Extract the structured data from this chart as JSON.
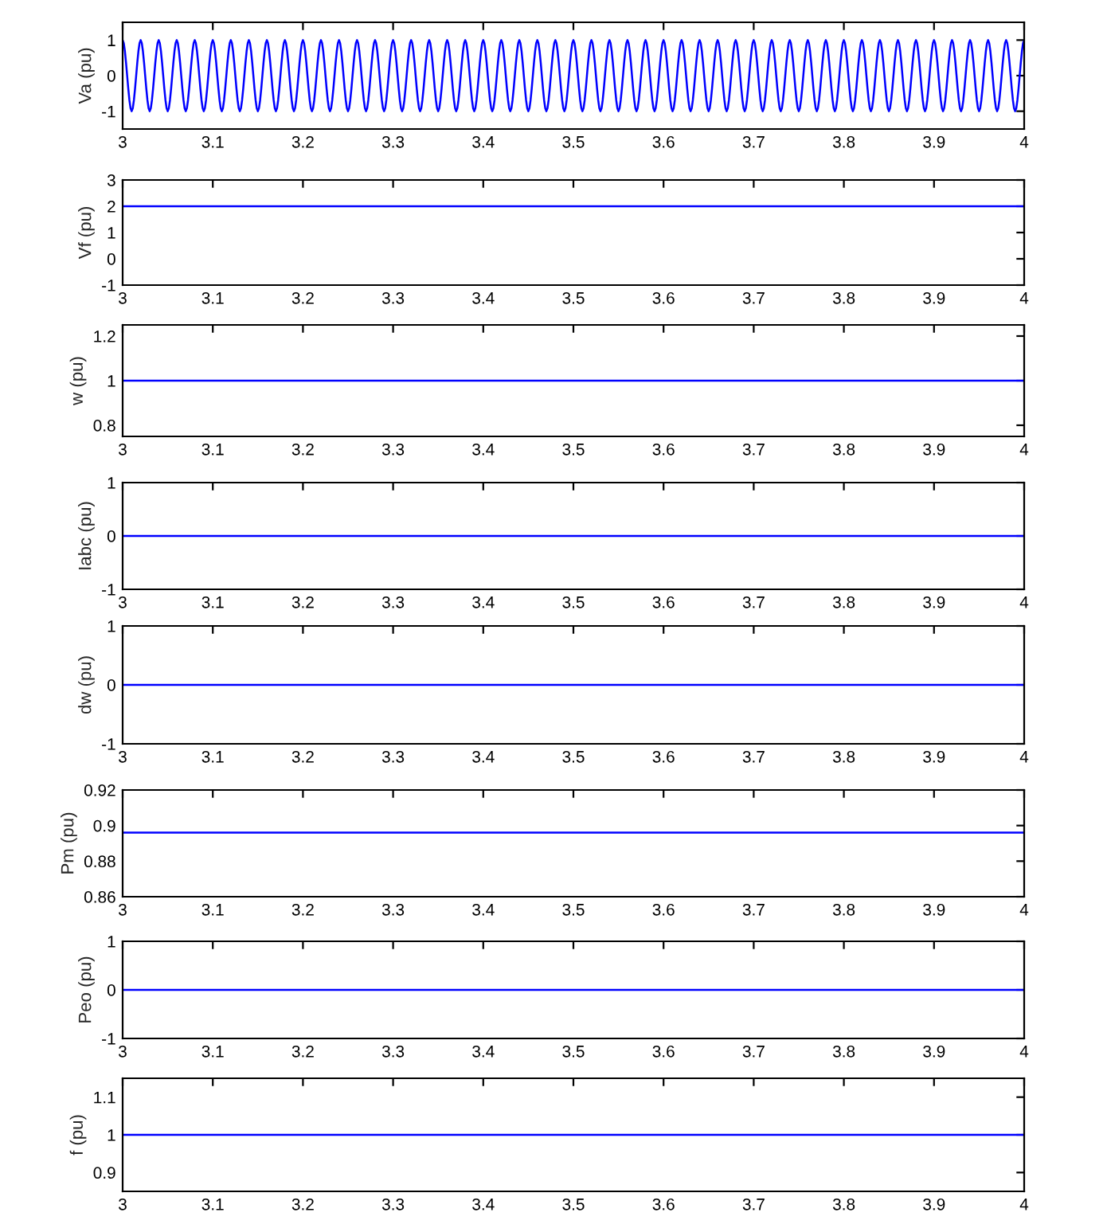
{
  "chart_data": [
    {
      "type": "line",
      "ylabel": "Va (pu)",
      "xlim": [
        3,
        4
      ],
      "ylim": [
        -1.5,
        1.5
      ],
      "xticks": [
        3,
        3.1,
        3.2,
        3.3,
        3.4,
        3.5,
        3.6,
        3.7,
        3.8,
        3.9,
        4
      ],
      "yticks": [
        -1,
        0,
        1
      ],
      "x": [
        3,
        3.01,
        3.02,
        3.03,
        3.04,
        3.05,
        3.06,
        3.07,
        3.08,
        3.09,
        3.1,
        3.11,
        3.12,
        3.13,
        3.14,
        3.15,
        3.16,
        3.17,
        3.18,
        3.19,
        3.2,
        3.21,
        3.22,
        3.23,
        3.24,
        3.25,
        3.26,
        3.27,
        3.28,
        3.29,
        3.3,
        3.31,
        3.32,
        3.33,
        3.34,
        3.35,
        3.36,
        3.37,
        3.38,
        3.39,
        3.4,
        3.41,
        3.42,
        3.43,
        3.44,
        3.45,
        3.46,
        3.47,
        3.48,
        3.49,
        3.5,
        3.51,
        3.52,
        3.53,
        3.54,
        3.55,
        3.56,
        3.57,
        3.58,
        3.59,
        3.6,
        3.61,
        3.62,
        3.63,
        3.64,
        3.65,
        3.66,
        3.67,
        3.68,
        3.69,
        3.7,
        3.71,
        3.72,
        3.73,
        3.74,
        3.75,
        3.76,
        3.77,
        3.78,
        3.79,
        3.8,
        3.81,
        3.82,
        3.83,
        3.84,
        3.85,
        3.86,
        3.87,
        3.88,
        3.89,
        3.9,
        3.91,
        3.92,
        3.93,
        3.94,
        3.95,
        3.96,
        3.97,
        3.98,
        3.99,
        4
      ],
      "series": [
        {
          "color": "#0000ff",
          "values": [
            1,
            -1,
            1,
            -1,
            1,
            -1,
            1,
            -1,
            1,
            -1,
            1,
            -1,
            1,
            -1,
            1,
            -1,
            1,
            -1,
            1,
            -1,
            1,
            -1,
            1,
            -1,
            1,
            -1,
            1,
            -1,
            1,
            -1,
            1,
            -1,
            1,
            -1,
            1,
            -1,
            1,
            -1,
            1,
            -1,
            1,
            -1,
            1,
            -1,
            1,
            -1,
            1,
            -1,
            1,
            -1,
            1,
            -1,
            1,
            -1,
            1,
            -1,
            1,
            -1,
            1,
            -1,
            1,
            -1,
            1,
            -1,
            1,
            -1,
            1,
            -1,
            1,
            -1,
            1,
            -1,
            1,
            -1,
            1,
            -1,
            1,
            -1,
            1,
            -1,
            1,
            -1,
            1,
            -1,
            1,
            -1,
            1,
            -1,
            1,
            -1,
            1,
            -1,
            1,
            -1,
            1,
            -1,
            1,
            -1,
            1,
            -1,
            1
          ]
        }
      ]
    },
    {
      "type": "line",
      "ylabel": "Vf (pu)",
      "xlim": [
        3,
        4
      ],
      "ylim": [
        -1,
        3
      ],
      "xticks": [
        3,
        3.1,
        3.2,
        3.3,
        3.4,
        3.5,
        3.6,
        3.7,
        3.8,
        3.9,
        4
      ],
      "yticks": [
        -1,
        0,
        1,
        2,
        3
      ],
      "x": [
        3,
        4
      ],
      "series": [
        {
          "color": "#0000ff",
          "values": [
            2,
            2
          ]
        }
      ]
    },
    {
      "type": "line",
      "ylabel": "w (pu)",
      "xlim": [
        3,
        4
      ],
      "ylim": [
        0.75,
        1.25
      ],
      "xticks": [
        3,
        3.1,
        3.2,
        3.3,
        3.4,
        3.5,
        3.6,
        3.7,
        3.8,
        3.9,
        4
      ],
      "yticks": [
        0.8,
        1,
        1.2
      ],
      "x": [
        3,
        4
      ],
      "series": [
        {
          "color": "#0000ff",
          "values": [
            1,
            1
          ]
        }
      ]
    },
    {
      "type": "line",
      "ylabel": "Iabc (pu)",
      "xlim": [
        3,
        4
      ],
      "ylim": [
        -1,
        1
      ],
      "xticks": [
        3,
        3.1,
        3.2,
        3.3,
        3.4,
        3.5,
        3.6,
        3.7,
        3.8,
        3.9,
        4
      ],
      "yticks": [
        -1,
        0,
        1
      ],
      "x": [
        3,
        4
      ],
      "series": [
        {
          "color": "#0000ff",
          "values": [
            0,
            0
          ]
        }
      ]
    },
    {
      "type": "line",
      "ylabel": "dw (pu)",
      "xlim": [
        3,
        4
      ],
      "ylim": [
        -1,
        1
      ],
      "xticks": [
        3,
        3.1,
        3.2,
        3.3,
        3.4,
        3.5,
        3.6,
        3.7,
        3.8,
        3.9,
        4
      ],
      "yticks": [
        -1,
        0,
        1
      ],
      "x": [
        3,
        4
      ],
      "series": [
        {
          "color": "#0000ff",
          "values": [
            0,
            0
          ]
        }
      ]
    },
    {
      "type": "line",
      "ylabel": "Pm (pu)",
      "xlim": [
        3,
        4
      ],
      "ylim": [
        0.86,
        0.92
      ],
      "xticks": [
        3,
        3.1,
        3.2,
        3.3,
        3.4,
        3.5,
        3.6,
        3.7,
        3.8,
        3.9,
        4
      ],
      "yticks": [
        0.86,
        0.88,
        0.9,
        0.92
      ],
      "x": [
        3,
        4
      ],
      "series": [
        {
          "color": "#0000ff",
          "values": [
            0.896,
            0.896
          ]
        }
      ]
    },
    {
      "type": "line",
      "ylabel": "Peo (pu)",
      "xlim": [
        3,
        4
      ],
      "ylim": [
        -1,
        1
      ],
      "xticks": [
        3,
        3.1,
        3.2,
        3.3,
        3.4,
        3.5,
        3.6,
        3.7,
        3.8,
        3.9,
        4
      ],
      "yticks": [
        -1,
        0,
        1
      ],
      "x": [
        3,
        4
      ],
      "series": [
        {
          "color": "#0000ff",
          "values": [
            0,
            0
          ]
        }
      ]
    },
    {
      "type": "line",
      "ylabel": "f (pu)",
      "xlim": [
        3,
        4
      ],
      "ylim": [
        0.85,
        1.15
      ],
      "xticks": [
        3,
        3.1,
        3.2,
        3.3,
        3.4,
        3.5,
        3.6,
        3.7,
        3.8,
        3.9,
        4
      ],
      "yticks": [
        0.9,
        1,
        1.1
      ],
      "x": [
        3,
        4
      ],
      "series": [
        {
          "color": "#0000ff",
          "values": [
            1,
            1
          ]
        }
      ]
    }
  ]
}
